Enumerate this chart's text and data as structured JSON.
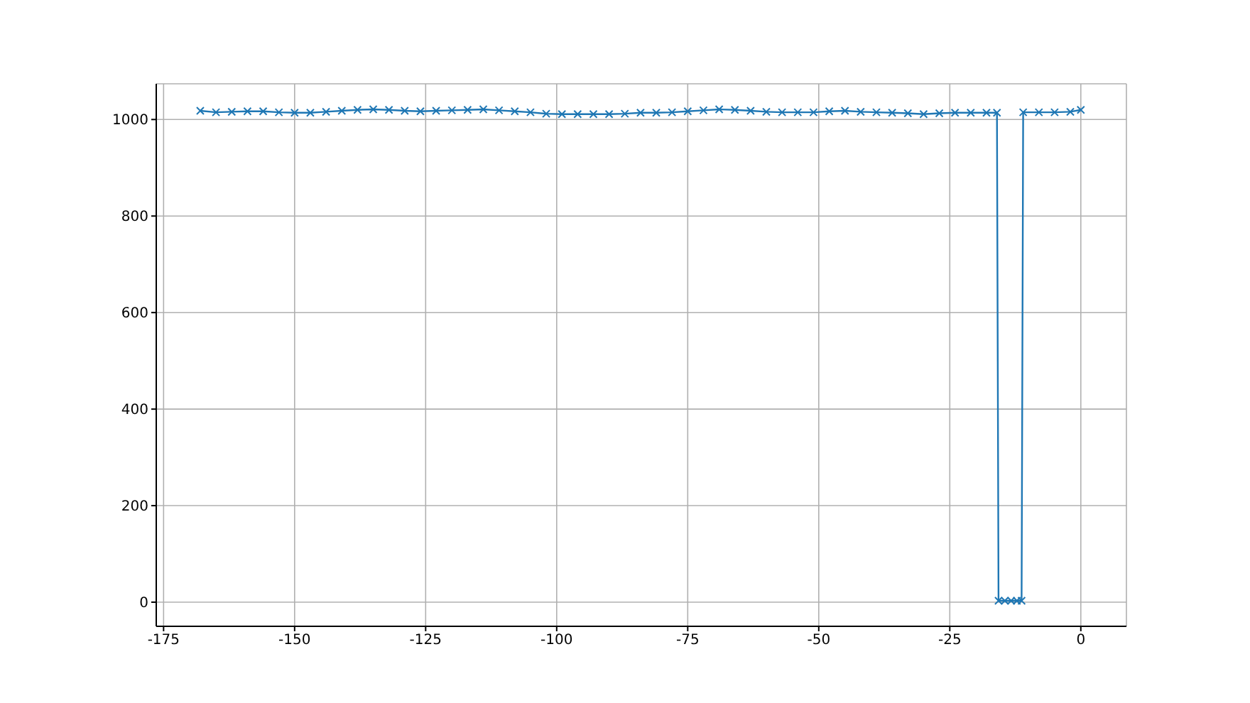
{
  "chart_data": {
    "type": "line",
    "marker": "cross",
    "line_style": "solid",
    "grid": true,
    "x": [
      -168,
      -165,
      -162,
      -159,
      -156,
      -153,
      -150,
      -147,
      -144,
      -141,
      -138,
      -135,
      -132,
      -129,
      -126,
      -123,
      -120,
      -117,
      -114,
      -111,
      -108,
      -105,
      -102,
      -99,
      -96,
      -93,
      -90,
      -87,
      -84,
      -81,
      -78,
      -75,
      -72,
      -69,
      -66,
      -63,
      -60,
      -57,
      -54,
      -51,
      -48,
      -45,
      -42,
      -39,
      -36,
      -33,
      -30,
      -27,
      -24,
      -21,
      -18,
      -16,
      -15.7,
      -14.5,
      -13.3,
      -12.2,
      -11.3,
      -11,
      -8,
      -5,
      -2,
      0
    ],
    "series": [
      {
        "color": "#1f77b4",
        "values": [
          1018,
          1015,
          1016,
          1017,
          1017,
          1015,
          1014,
          1014,
          1016,
          1018,
          1020,
          1021,
          1020,
          1018,
          1017,
          1018,
          1019,
          1020,
          1021,
          1019,
          1017,
          1015,
          1012,
          1011,
          1011,
          1011,
          1011,
          1012,
          1014,
          1014,
          1015,
          1017,
          1019,
          1021,
          1020,
          1018,
          1016,
          1015,
          1015,
          1015,
          1017,
          1018,
          1016,
          1015,
          1014,
          1013,
          1011,
          1013,
          1014,
          1014,
          1014,
          1014,
          3,
          3,
          3,
          3,
          3,
          1015,
          1015,
          1015,
          1016,
          1020
        ]
      }
    ],
    "xlim": [
      -176.4,
      8.7
    ],
    "xticks": [
      -175,
      -150,
      -125,
      -100,
      -75,
      -50,
      -25,
      0
    ],
    "ylim": [
      -50,
      1074
    ],
    "yticks": [
      0,
      200,
      400,
      600,
      800,
      1000
    ]
  }
}
